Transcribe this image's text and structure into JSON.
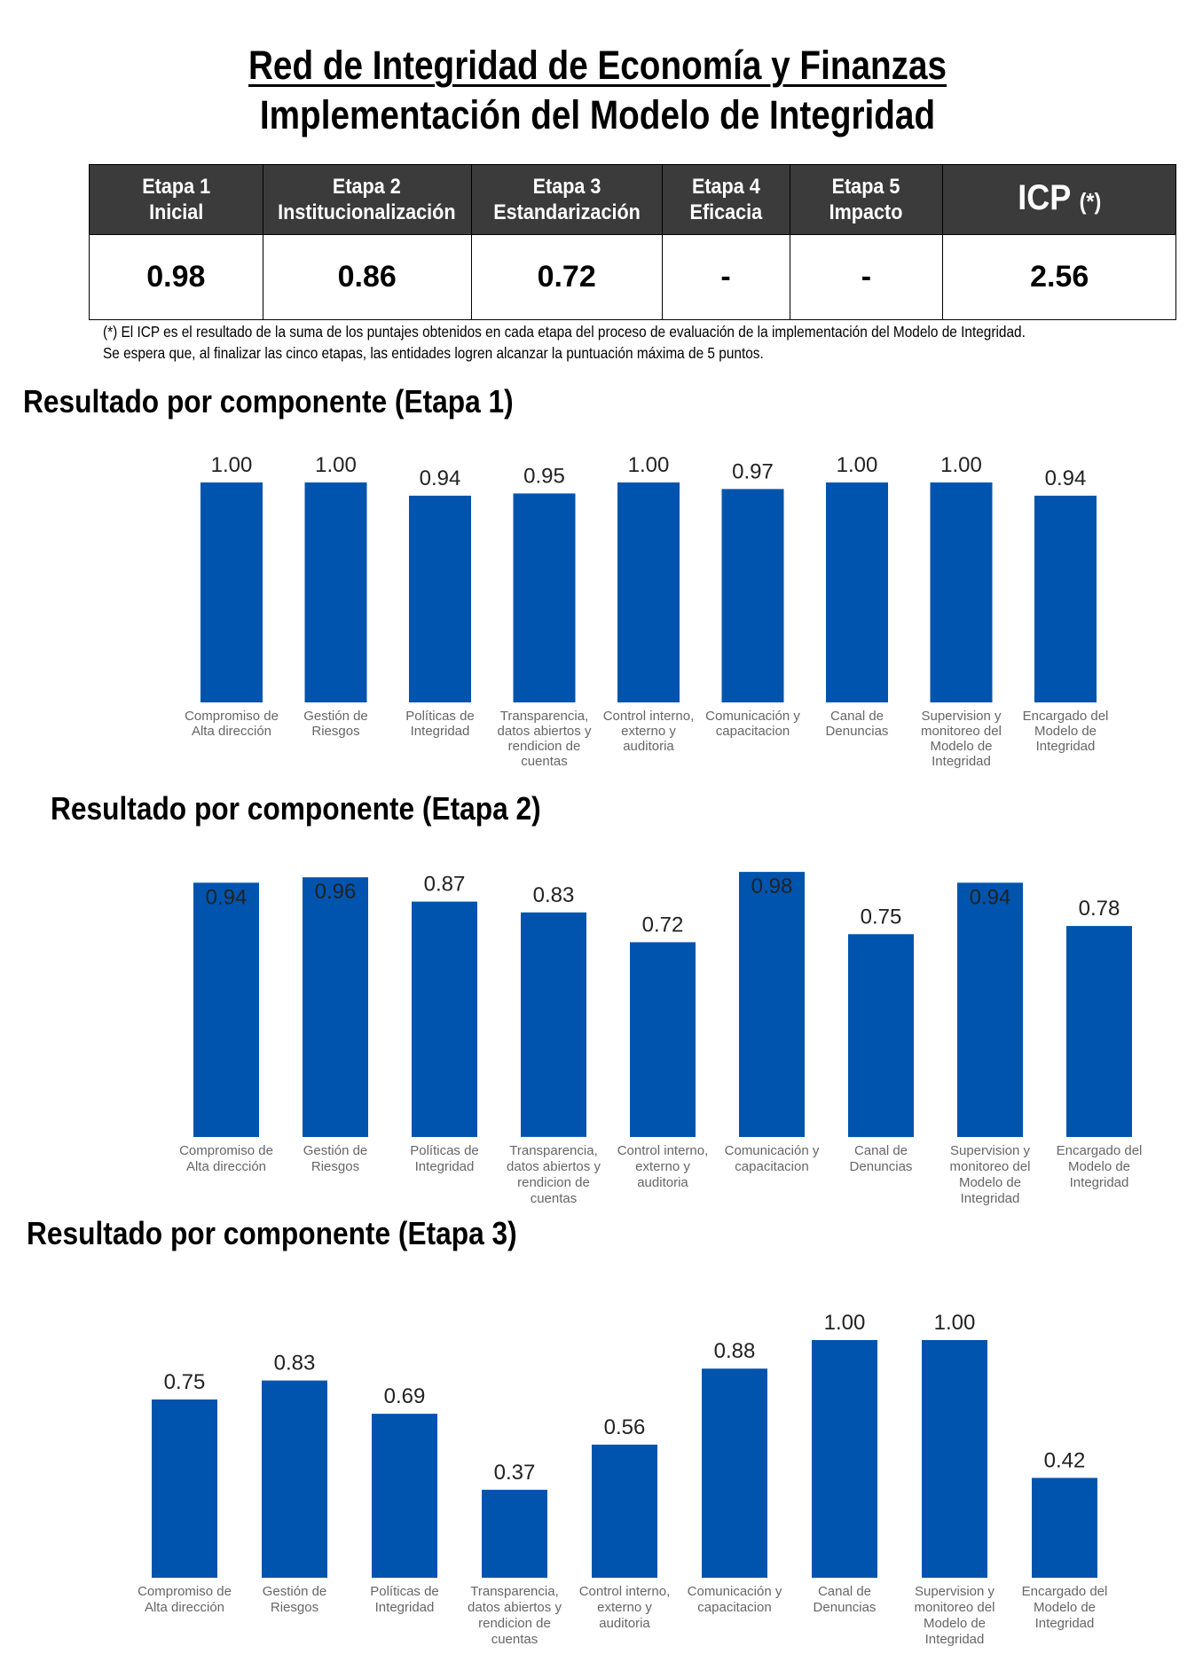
{
  "header": {
    "title": "Red de Integridad de Economía y Finanzas",
    "subtitle": "Implementación del Modelo de Integridad"
  },
  "stage_table": {
    "columns": [
      {
        "line1": "Etapa 1",
        "line2": "Inicial"
      },
      {
        "line1": "Etapa 2",
        "line2": "Institucionalización"
      },
      {
        "line1": "Etapa 3",
        "line2": "Estandarización"
      },
      {
        "line1": "Etapa 4",
        "line2": "Eficacia"
      },
      {
        "line1": "Etapa 5",
        "line2": "Impacto"
      }
    ],
    "icp_label": "ICP",
    "icp_suffix": "(*)",
    "values": [
      "0.98",
      "0.86",
      "0.72",
      "-",
      "-"
    ],
    "icp_value": "2.56"
  },
  "notes": {
    "line1": "(*) El ICP es el resultado de la suma de los puntajes obtenidos en cada etapa del proceso de evaluación de la implementación del Modelo de Integridad.",
    "line2": "Se espera que, al finalizar las cinco etapas, las entidades logren alcanzar la puntuación máxima de 5 puntos."
  },
  "colors": {
    "bar": "#0054ad",
    "header_bg": "#3b3b3b"
  },
  "chart_data": [
    {
      "type": "bar",
      "title": "Resultado por componente (Etapa 1)",
      "categories": [
        [
          "Compromiso de",
          "Alta dirección"
        ],
        [
          "Gestión de",
          "Riesgos"
        ],
        [
          "Políticas de",
          "Integridad"
        ],
        [
          "Transparencia,",
          "datos abiertos y",
          "rendicion de",
          "cuentas"
        ],
        [
          "Control interno,",
          "externo y",
          "auditoria"
        ],
        [
          "Comunicación y",
          "capacitacion"
        ],
        [
          "Canal de",
          "Denuncias"
        ],
        [
          "Supervision y",
          "monitoreo del",
          "Modelo de",
          "Integridad"
        ],
        [
          "Encargado del",
          "Modelo de",
          "Integridad"
        ]
      ],
      "values": [
        1.0,
        1.0,
        0.94,
        0.95,
        1.0,
        0.97,
        1.0,
        1.0,
        0.94
      ],
      "labels": [
        "1.00",
        "1.00",
        "0.94",
        "0.95",
        "1.00",
        "0.97",
        "1.00",
        "1.00",
        "0.94"
      ],
      "ylim": [
        0,
        1
      ]
    },
    {
      "type": "bar",
      "title": "Resultado por componente (Etapa 2)",
      "categories": [
        [
          "Compromiso de",
          "Alta dirección"
        ],
        [
          "Gestión de",
          "Riesgos"
        ],
        [
          "Políticas de",
          "Integridad"
        ],
        [
          "Transparencia,",
          "datos abiertos y",
          "rendicion de",
          "cuentas"
        ],
        [
          "Control interno,",
          "externo y",
          "auditoria"
        ],
        [
          "Comunicación y",
          "capacitacion"
        ],
        [
          "Canal de",
          "Denuncias"
        ],
        [
          "Supervision y",
          "monitoreo del",
          "Modelo de",
          "Integridad"
        ],
        [
          "Encargado del",
          "Modelo de",
          "Integridad"
        ]
      ],
      "values": [
        0.94,
        0.96,
        0.87,
        0.83,
        0.72,
        0.98,
        0.75,
        0.94,
        0.78
      ],
      "labels": [
        "0.94",
        "0.96",
        "0.87",
        "0.83",
        "0.72",
        "0.98",
        "0.75",
        "0.94",
        "0.78"
      ],
      "ylim": [
        0,
        1
      ]
    },
    {
      "type": "bar",
      "title": "Resultado por componente (Etapa 3)",
      "categories": [
        [
          "Compromiso de",
          "Alta dirección"
        ],
        [
          "Gestión de",
          "Riesgos"
        ],
        [
          "Políticas de",
          "Integridad"
        ],
        [
          "Transparencia,",
          "datos abiertos y",
          "rendicion de",
          "cuentas"
        ],
        [
          "Control interno,",
          "externo y",
          "auditoria"
        ],
        [
          "Comunicación y",
          "capacitacion"
        ],
        [
          "Canal de",
          "Denuncias"
        ],
        [
          "Supervision y",
          "monitoreo del",
          "Modelo de",
          "Integridad"
        ],
        [
          "Encargado del",
          "Modelo de",
          "Integridad"
        ]
      ],
      "values": [
        0.75,
        0.83,
        0.69,
        0.37,
        0.56,
        0.88,
        1.0,
        1.0,
        0.42
      ],
      "labels": [
        "0.75",
        "0.83",
        "0.69",
        "0.37",
        "0.56",
        "0.88",
        "1.00",
        "1.00",
        "0.42"
      ],
      "ylim": [
        0,
        1
      ]
    }
  ]
}
